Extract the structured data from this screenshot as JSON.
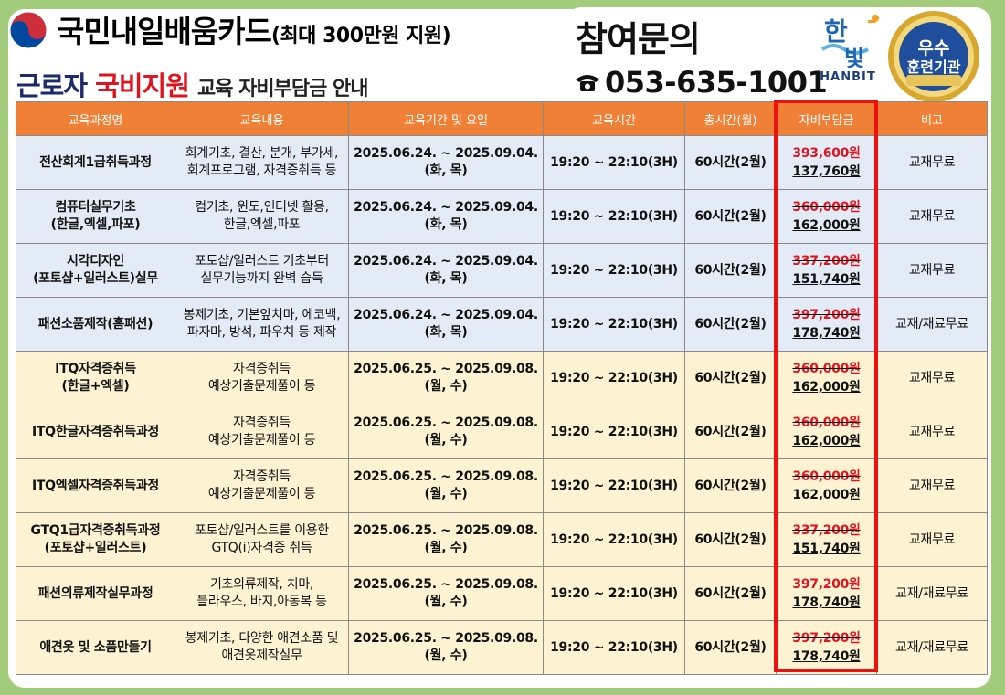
{
  "header": {
    "program_title": "국민내일배움카드",
    "program_subtitle": "(최대 300만원 지원)",
    "main_title_part1": "근로자",
    "main_title_highlight": "국비지원",
    "main_title_part2": "교육 자비부담금 안내",
    "inquiry_label": "참여문의",
    "phone": "053-635-1001",
    "logo_text": "HANBIT",
    "logo_char1": "한",
    "logo_char2": "빛",
    "badge_line1": "우수",
    "badge_line2": "훈련기관"
  },
  "colors": {
    "background": "#a3cd7c",
    "header_orange": "#ef8036",
    "row_blue": "#e2ebf6",
    "row_yellow": "#fdf2d2",
    "accent_red": "#e0141e",
    "highlight_box": "#ee1111",
    "badge_blue": "#1f4e9c",
    "badge_gold": "#d7a730"
  },
  "icons": [
    "taegeuk-icon",
    "phone-icon",
    "hanbit-logo",
    "excellence-badge"
  ],
  "table": {
    "headers": [
      "교육과정명",
      "교육내용",
      "교육기간 및 요일",
      "교육시간",
      "총시간(월)",
      "자비부담금",
      "비고"
    ],
    "rows": [
      {
        "course_l1": "전산회계1급취득과정",
        "course_l2": "",
        "content_l1": "회계기초, 결산, 분개, 부가세,",
        "content_l2": "회계프로그램, 자격증취득 등",
        "period": "2025.06.24. ~ 2025.09.04.",
        "days": "(화, 목)",
        "time": "19:20 ~ 22:10(3H)",
        "total": "60시간(2월)",
        "orig": "393,600원",
        "cost": "137,760원",
        "note": "교재무료",
        "color": "blue"
      },
      {
        "course_l1": "컴퓨터실무기초",
        "course_l2": "(한글,엑셀,파포)",
        "content_l1": "컴기초, 윈도,인터넷 활용,",
        "content_l2": "한글,엑셀,파포",
        "period": "2025.06.24. ~ 2025.09.04.",
        "days": "(화, 목)",
        "time": "19:20 ~ 22:10(3H)",
        "total": "60시간(2월)",
        "orig": "360,000원",
        "cost": "162,000원",
        "note": "교재무료",
        "color": "blue"
      },
      {
        "course_l1": "시각디자인",
        "course_l2": "(포토샵+일러스트)실무",
        "content_l1": "포토샵/일러스트 기초부터",
        "content_l2": "실무기능까지 완벽 습득",
        "period": "2025.06.24. ~ 2025.09.04.",
        "days": "(화, 목)",
        "time": "19:20 ~ 22:10(3H)",
        "total": "60시간(2월)",
        "orig": "337,200원",
        "cost": "151,740원",
        "note": "교재무료",
        "color": "blue"
      },
      {
        "course_l1": "패션소품제작(홈패션)",
        "course_l2": "",
        "content_l1": "봉제기초, 기본앞치마, 에코백,",
        "content_l2": "파자마, 방석, 파우치 등 제작",
        "period": "2025.06.24. ~ 2025.09.04.",
        "days": "(화, 목)",
        "time": "19:20 ~ 22:10(3H)",
        "total": "60시간(2월)",
        "orig": "397,200원",
        "cost": "178,740원",
        "note": "교재/재료무료",
        "color": "blue"
      },
      {
        "course_l1": "ITQ자격증취득",
        "course_l2": "(한글+엑셀)",
        "content_l1": "자격증취득",
        "content_l2": "예상기출문제풀이 등",
        "period": "2025.06.25. ~ 2025.09.08.",
        "days": "(월, 수)",
        "time": "19:20 ~ 22:10(3H)",
        "total": "60시간(2월)",
        "orig": "360,000원",
        "cost": "162,000원",
        "note": "교재무료",
        "color": "yellow"
      },
      {
        "course_l1": "ITQ한글자격증취득과정",
        "course_l2": "",
        "content_l1": "자격증취득",
        "content_l2": "예상기출문제풀이 등",
        "period": "2025.06.25. ~ 2025.09.08.",
        "days": "(월, 수)",
        "time": "19:20 ~ 22:10(3H)",
        "total": "60시간(2월)",
        "orig": "360,000원",
        "cost": "162,000원",
        "note": "교재무료",
        "color": "yellow"
      },
      {
        "course_l1": "ITQ엑셀자격증취득과정",
        "course_l2": "",
        "content_l1": "자격증취득",
        "content_l2": "예상기출문제풀이 등",
        "period": "2025.06.25. ~ 2025.09.08.",
        "days": "(월, 수)",
        "time": "19:20 ~ 22:10(3H)",
        "total": "60시간(2월)",
        "orig": "360,000원",
        "cost": "162,000원",
        "note": "교재무료",
        "color": "yellow"
      },
      {
        "course_l1": "GTQ1급자격증취득과정",
        "course_l2": "(포토샵+일러스트)",
        "content_l1": "포토샵/일러스트를 이용한",
        "content_l2": "GTQ(i)자격증 취득",
        "period": "2025.06.25. ~ 2025.09.08.",
        "days": "(월, 수)",
        "time": "19:20 ~ 22:10(3H)",
        "total": "60시간(2월)",
        "orig": "337,200원",
        "cost": "151,740원",
        "note": "교재무료",
        "color": "yellow"
      },
      {
        "course_l1": "패션의류제작실무과정",
        "course_l2": "",
        "content_l1": "기초의류제작, 치마,",
        "content_l2": "블라우스, 바지,아동복 등",
        "period": "2025.06.25. ~ 2025.09.08.",
        "days": "(월, 수)",
        "time": "19:20 ~ 22:10(3H)",
        "total": "60시간(2월)",
        "orig": "397,200원",
        "cost": "178,740원",
        "note": "교재/재료무료",
        "color": "yellow"
      },
      {
        "course_l1": "애견옷 및 소품만들기",
        "course_l2": "",
        "content_l1": "봉제기초, 다양한 애견소품 및",
        "content_l2": "애견옷제작실무",
        "period": "2025.06.25. ~ 2025.09.08.",
        "days": "(월, 수)",
        "time": "19:20 ~ 22:10(3H)",
        "total": "60시간(2월)",
        "orig": "397,200원",
        "cost": "178,740원",
        "note": "교재/재료무료",
        "color": "yellow"
      }
    ]
  }
}
